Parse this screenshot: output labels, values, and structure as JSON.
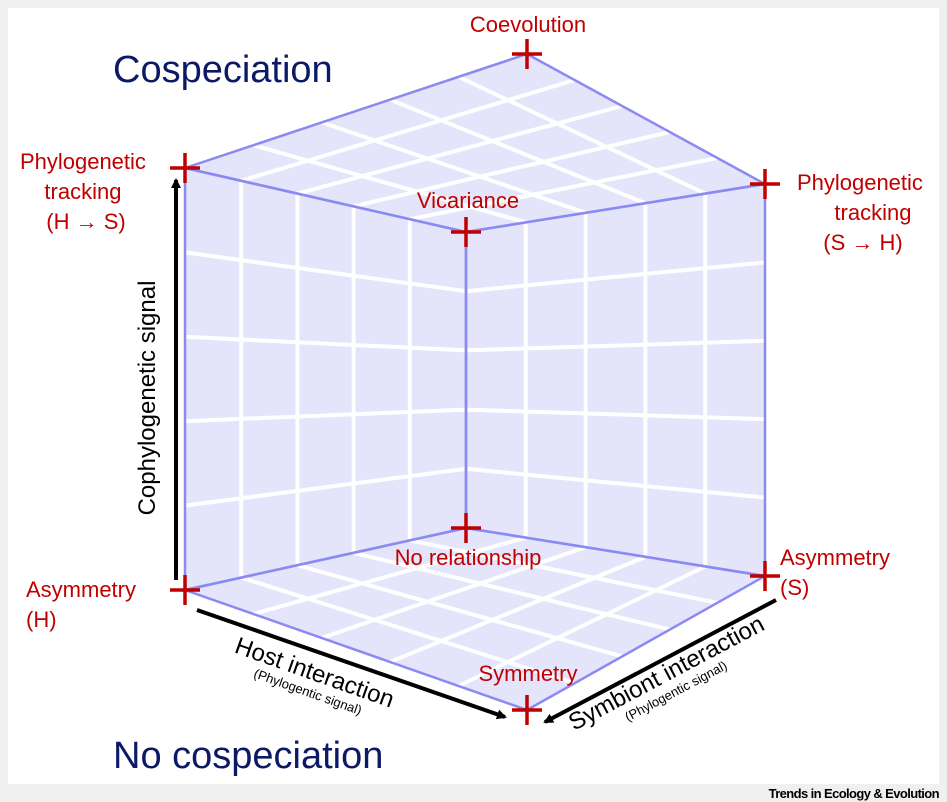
{
  "title_top": "Cospeciation",
  "title_bottom": "No cospeciation",
  "vertices": {
    "coevolution": "Coevolution",
    "vicariance": "Vicariance",
    "tracking_hs": [
      "Phylogenetic",
      "tracking",
      "(H → S)"
    ],
    "tracking_sh": [
      "Phylogenetic",
      "tracking",
      "(S → H)"
    ],
    "no_relationship": "No relationship",
    "asymmetry_h": [
      "Asymmetry",
      "(H)"
    ],
    "asymmetry_s": [
      "Asymmetry",
      "(S)"
    ],
    "symmetry": "Symmetry"
  },
  "axes": {
    "vertical": "Cophylogenetic signal",
    "host": "Host interaction",
    "host_sub": "(Phylogentic signal)",
    "symbiont": "Symbiont interaction",
    "symbiont_sub": "(Phylogentic signal)"
  },
  "footer": "Trends in Ecology & Evolution"
}
